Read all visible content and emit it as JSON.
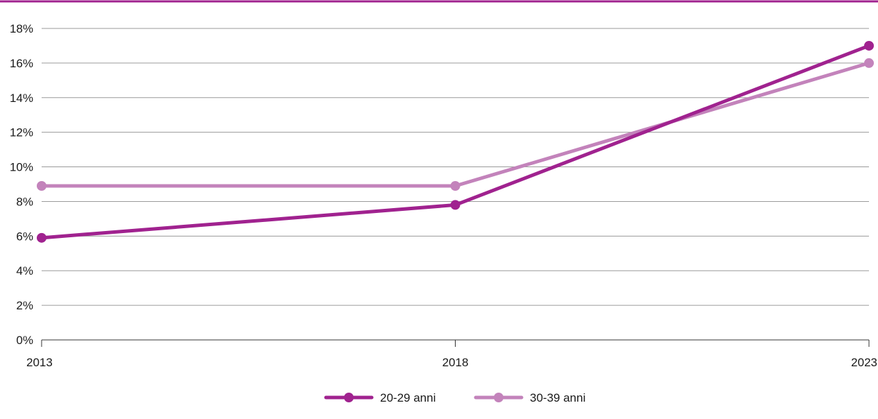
{
  "chart_data": {
    "type": "line",
    "title": "",
    "xlabel": "",
    "ylabel": "",
    "x": [
      "2013",
      "2018",
      "2023"
    ],
    "ylim": [
      0,
      18
    ],
    "y_ticks": [
      0,
      2,
      4,
      6,
      8,
      10,
      12,
      14,
      16,
      18
    ],
    "y_tick_format": "%",
    "grid": true,
    "legend_position": "bottom-center",
    "series": [
      {
        "name": "20-29 anni",
        "values": [
          5.9,
          7.8,
          17.0
        ],
        "color": "#a0228f"
      },
      {
        "name": "30-39 anni",
        "values": [
          8.9,
          8.9,
          16.0
        ],
        "color": "#c383bb"
      }
    ],
    "colors": {
      "top_rule": "#a0228f",
      "grid": "#9a9a9a",
      "axis": "#333333"
    }
  }
}
